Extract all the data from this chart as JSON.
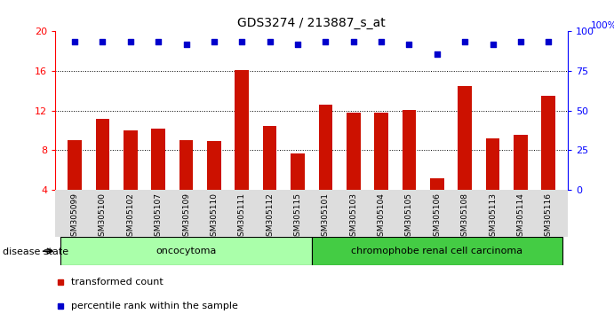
{
  "title": "GDS3274 / 213887_s_at",
  "samples": [
    "GSM305099",
    "GSM305100",
    "GSM305102",
    "GSM305107",
    "GSM305109",
    "GSM305110",
    "GSM305111",
    "GSM305112",
    "GSM305115",
    "GSM305101",
    "GSM305103",
    "GSM305104",
    "GSM305105",
    "GSM305106",
    "GSM305108",
    "GSM305113",
    "GSM305114",
    "GSM305116"
  ],
  "bar_values": [
    9.0,
    11.2,
    10.0,
    10.2,
    9.0,
    8.9,
    16.1,
    10.5,
    7.7,
    12.6,
    11.8,
    11.8,
    12.1,
    5.2,
    14.5,
    9.2,
    9.6,
    13.5
  ],
  "percentile_values": [
    19.0,
    19.0,
    19.0,
    19.0,
    18.7,
    19.0,
    19.0,
    19.0,
    18.7,
    19.0,
    19.0,
    19.0,
    18.7,
    17.7,
    19.0,
    18.7,
    19.0,
    19.0
  ],
  "groups": [
    {
      "label": "oncocytoma",
      "start": 0,
      "end": 9,
      "color": "#aaffaa"
    },
    {
      "label": "chromophobe renal cell carcinoma",
      "start": 9,
      "end": 18,
      "color": "#44cc44"
    }
  ],
  "disease_state_label": "disease state",
  "bar_color": "#cc1100",
  "dot_color": "#0000cc",
  "ylim": [
    4,
    20
  ],
  "yticks_left": [
    4,
    8,
    12,
    16,
    20
  ],
  "yticks_right": [
    0,
    25,
    50,
    75,
    100
  ],
  "grid_values": [
    8,
    12,
    16
  ],
  "legend_bar_label": "transformed count",
  "legend_dot_label": "percentile rank within the sample",
  "bg_color": "#dddddd"
}
